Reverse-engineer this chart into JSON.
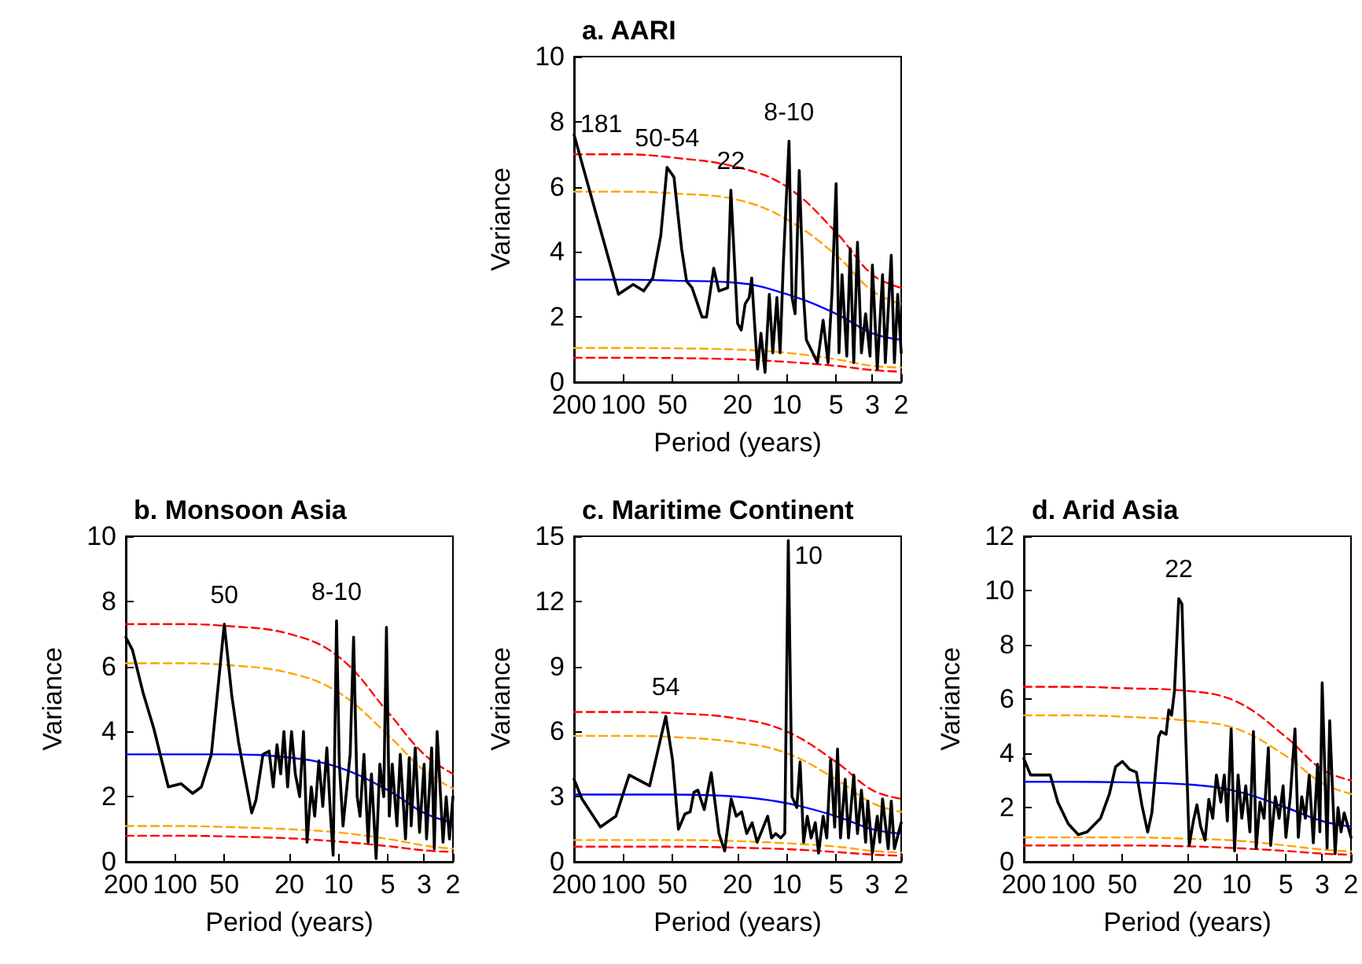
{
  "chart_data": [
    {
      "type": "line",
      "title": "a. AARI",
      "xlabel": "Period (years)",
      "ylabel": "Variance",
      "log": "x",
      "marker": "none",
      "xlim": [
        200,
        2
      ],
      "xticks": [
        200,
        100,
        50,
        20,
        10,
        5,
        3,
        2
      ],
      "ylim": [
        0,
        10
      ],
      "yticks": [
        0,
        2,
        4,
        6,
        8,
        10
      ],
      "annotations": [
        {
          "text": "181",
          "x": 200,
          "y": 7.6
        },
        {
          "text": "50-54",
          "x": 54,
          "y": 6.6
        },
        {
          "text": "22",
          "x": 22,
          "y": 5.9
        },
        {
          "text": "8-10",
          "x": 9.7,
          "y": 7.4
        }
      ],
      "series": [
        {
          "color": "#000000",
          "line_style": "solid",
          "x": [
            200,
            107,
            87,
            75,
            66,
            59,
            54,
            49,
            44,
            41,
            38,
            33,
            31,
            28,
            26,
            23,
            22,
            20,
            19,
            18,
            17,
            16.4,
            15.8,
            15.1,
            14.4,
            13.6,
            12.8,
            12.2,
            11.5,
            11,
            10.5,
            9.7,
            9.3,
            8.9,
            8.4,
            7.9,
            7.6,
            6.5,
            6,
            5.6,
            5.3,
            5,
            4.8,
            4.6,
            4.3,
            4.1,
            3.9,
            3.7,
            3.5,
            3.3,
            3.1,
            3,
            2.8,
            2.6,
            2.5,
            2.3,
            2.2,
            2.1,
            2
          ],
          "values": [
            7.6,
            2.7,
            3.0,
            2.8,
            3.2,
            4.5,
            6.6,
            6.3,
            4.1,
            3.1,
            2.9,
            2.0,
            2.0,
            3.5,
            2.8,
            2.9,
            5.9,
            1.8,
            1.6,
            2.4,
            2.6,
            3.2,
            1.9,
            0.4,
            1.5,
            0.3,
            2.7,
            0.9,
            2.6,
            0.9,
            3.7,
            7.4,
            2.6,
            2.1,
            6.5,
            2.6,
            1.3,
            0.6,
            1.9,
            0.6,
            2.7,
            6.1,
            0.9,
            3.3,
            0.8,
            4.1,
            0.6,
            4.3,
            0.9,
            2.1,
            0.8,
            3.6,
            0.4,
            3.3,
            0.6,
            3.9,
            0.6,
            2.7,
            0.9
          ]
        },
        {
          "color": "#ff0000",
          "line_style": "dashed",
          "x": [
            200,
            100,
            50,
            20,
            10,
            5,
            3,
            2
          ],
          "values": [
            7.0,
            7.0,
            6.9,
            6.6,
            6.0,
            4.6,
            3.3,
            2.9
          ]
        },
        {
          "color": "#ffa500",
          "line_style": "dashed",
          "x": [
            200,
            100,
            50,
            20,
            10,
            5,
            3,
            2
          ],
          "values": [
            5.85,
            5.85,
            5.8,
            5.6,
            5.0,
            3.9,
            2.8,
            2.4
          ]
        },
        {
          "color": "#0000ff",
          "line_style": "solid",
          "x": [
            200,
            100,
            50,
            20,
            10,
            5,
            3,
            2
          ],
          "values": [
            3.15,
            3.15,
            3.12,
            3.05,
            2.7,
            2.1,
            1.5,
            1.3
          ]
        },
        {
          "color": "#ffa500",
          "line_style": "dashed",
          "x": [
            200,
            100,
            50,
            20,
            10,
            5,
            3,
            2
          ],
          "values": [
            1.05,
            1.05,
            1.04,
            1.0,
            0.9,
            0.7,
            0.5,
            0.45
          ]
        },
        {
          "color": "#ff0000",
          "line_style": "dashed",
          "x": [
            200,
            100,
            50,
            20,
            10,
            5,
            3,
            2
          ],
          "values": [
            0.75,
            0.75,
            0.74,
            0.7,
            0.62,
            0.5,
            0.37,
            0.32
          ]
        }
      ]
    },
    {
      "type": "line",
      "title": "b. Monsoon Asia",
      "xlabel": "Period (years)",
      "ylabel": "Variance",
      "log": "x",
      "marker": "none",
      "xlim": [
        200,
        2
      ],
      "xticks": [
        200,
        100,
        50,
        20,
        10,
        5,
        3,
        2
      ],
      "ylim": [
        0,
        10
      ],
      "yticks": [
        0,
        2,
        4,
        6,
        8,
        10
      ],
      "annotations": [
        {
          "text": "50",
          "x": 50,
          "y": 7.3
        },
        {
          "text": "8-10",
          "x": 10.3,
          "y": 7.4
        }
      ],
      "series": [
        {
          "color": "#000000",
          "line_style": "solid",
          "x": [
            200,
            182,
            157,
            135,
            110,
            92,
            78,
            69,
            60,
            50,
            45,
            41,
            38,
            34,
            32,
            29,
            26.6,
            25.1,
            23.8,
            22.6,
            21.6,
            20.5,
            19.4,
            18.4,
            17.3,
            16.4,
            15.6,
            14.7,
            14,
            13.2,
            12.5,
            11.8,
            11.2,
            10.8,
            10.3,
            9.9,
            9.4,
            8.5,
            8.1,
            7.7,
            7.4,
            7,
            6.6,
            6.3,
            5.9,
            5.6,
            5.3,
            5.1,
            4.9,
            4.7,
            4.4,
            4.2,
            3.9,
            3.7,
            3.6,
            3.4,
            3.2,
            3,
            2.9,
            2.7,
            2.6,
            2.5,
            2.3,
            2.2,
            2.1,
            2
          ],
          "values": [
            6.9,
            6.5,
            5.2,
            4.1,
            2.3,
            2.4,
            2.1,
            2.3,
            3.3,
            7.3,
            5.1,
            3.7,
            2.8,
            1.5,
            1.9,
            3.3,
            3.4,
            2.3,
            3.6,
            2.7,
            4.0,
            2.3,
            4.0,
            2.7,
            2.0,
            4.0,
            0.6,
            2.3,
            1.4,
            3.1,
            1.7,
            3.5,
            1.4,
            0.2,
            7.4,
            3.0,
            1.1,
            3.3,
            6.9,
            2.0,
            1.4,
            3.3,
            0.6,
            2.7,
            0.1,
            3.0,
            2.0,
            7.2,
            1.4,
            3.0,
            1.1,
            3.3,
            0.7,
            3.2,
            1.1,
            3.5,
            0.9,
            3.0,
            0.7,
            3.5,
            0.4,
            4.0,
            0.6,
            2.0,
            0.7,
            2.0
          ]
        },
        {
          "color": "#ff0000",
          "line_style": "dashed",
          "x": [
            200,
            100,
            50,
            20,
            10,
            5,
            3,
            2
          ],
          "values": [
            7.3,
            7.3,
            7.25,
            7.0,
            6.3,
            4.6,
            3.3,
            2.7
          ]
        },
        {
          "color": "#ffa500",
          "line_style": "dashed",
          "x": [
            200,
            100,
            50,
            20,
            10,
            5,
            3,
            2
          ],
          "values": [
            6.1,
            6.1,
            6.05,
            5.8,
            5.2,
            3.9,
            2.8,
            2.25
          ]
        },
        {
          "color": "#0000ff",
          "line_style": "solid",
          "x": [
            200,
            100,
            50,
            20,
            10,
            5,
            3,
            2
          ],
          "values": [
            3.3,
            3.3,
            3.3,
            3.2,
            2.9,
            2.2,
            1.5,
            1.2
          ]
        },
        {
          "color": "#ffa500",
          "line_style": "dashed",
          "x": [
            200,
            100,
            50,
            20,
            10,
            5,
            3,
            2
          ],
          "values": [
            1.1,
            1.1,
            1.07,
            1.0,
            0.9,
            0.7,
            0.5,
            0.4
          ]
        },
        {
          "color": "#ff0000",
          "line_style": "dashed",
          "x": [
            200,
            100,
            50,
            20,
            10,
            5,
            3,
            2
          ],
          "values": [
            0.8,
            0.8,
            0.78,
            0.72,
            0.62,
            0.48,
            0.35,
            0.3
          ]
        }
      ]
    },
    {
      "type": "line",
      "title": "c. Maritime Continent",
      "xlabel": "Period (years)",
      "ylabel": "Variance",
      "log": "x",
      "marker": "none",
      "xlim": [
        200,
        2
      ],
      "xticks": [
        200,
        100,
        50,
        20,
        10,
        5,
        3,
        2
      ],
      "ylim": [
        0,
        15
      ],
      "yticks": [
        0,
        3,
        6,
        9,
        12,
        15
      ],
      "annotations": [
        {
          "text": "54",
          "x": 55,
          "y": 6.7
        },
        {
          "text": "10",
          "x": 9.8,
          "y": 14.8
        }
      ],
      "series": [
        {
          "color": "#000000",
          "line_style": "solid",
          "x": [
            200,
            179,
            138,
            111,
            92,
            69,
            55,
            50,
            46,
            42,
            39,
            37,
            35,
            32,
            29,
            26,
            24,
            21.9,
            20.4,
            18.9,
            17.6,
            16.3,
            15.2,
            14.1,
            13.1,
            12.4,
            11.7,
            10.9,
            10.3,
            9.8,
            9.3,
            8.7,
            8.3,
            7.9,
            7.5,
            7.1,
            6.7,
            6.4,
            6,
            5.7,
            5.4,
            5.1,
            4.9,
            4.7,
            4.4,
            4.2,
            3.9,
            3.7,
            3.5,
            3.3,
            3.2,
            3,
            2.8,
            2.7,
            2.6,
            2.4,
            2.3,
            2.2,
            2
          ],
          "values": [
            3.8,
            2.9,
            1.6,
            2.1,
            4.0,
            3.5,
            6.7,
            4.7,
            1.5,
            2.2,
            2.3,
            3.2,
            3.3,
            2.4,
            4.1,
            1.3,
            0.5,
            2.9,
            2.1,
            2.3,
            1.3,
            1.8,
            0.9,
            1.5,
            2.1,
            1.1,
            1.3,
            1.1,
            1.3,
            14.8,
            3.0,
            2.5,
            4.6,
            0.9,
            2.1,
            1.1,
            1.8,
            0.4,
            2.1,
            1.1,
            4.7,
            1.6,
            5.2,
            1.1,
            3.8,
            1.1,
            4.0,
            1.3,
            3.3,
            0.9,
            2.8,
            0.4,
            2.1,
            0.9,
            2.9,
            0.6,
            2.8,
            0.6,
            1.8
          ]
        },
        {
          "color": "#ff0000",
          "line_style": "dashed",
          "x": [
            200,
            100,
            50,
            20,
            10,
            5,
            3,
            2
          ],
          "values": [
            6.9,
            6.9,
            6.85,
            6.6,
            6.0,
            4.6,
            3.3,
            2.9
          ]
        },
        {
          "color": "#ffa500",
          "line_style": "dashed",
          "x": [
            200,
            100,
            50,
            20,
            10,
            5,
            3,
            2
          ],
          "values": [
            5.8,
            5.8,
            5.75,
            5.5,
            5.0,
            3.8,
            2.7,
            2.3
          ]
        },
        {
          "color": "#0000ff",
          "line_style": "solid",
          "x": [
            200,
            100,
            50,
            20,
            10,
            5,
            3,
            2
          ],
          "values": [
            3.1,
            3.1,
            3.1,
            3.0,
            2.7,
            2.1,
            1.5,
            1.3
          ]
        },
        {
          "color": "#ffa500",
          "line_style": "dashed",
          "x": [
            200,
            100,
            50,
            20,
            10,
            5,
            3,
            2
          ],
          "values": [
            1.0,
            1.0,
            1.0,
            0.95,
            0.85,
            0.7,
            0.5,
            0.42
          ]
        },
        {
          "color": "#ff0000",
          "line_style": "dashed",
          "x": [
            200,
            100,
            50,
            20,
            10,
            5,
            3,
            2
          ],
          "values": [
            0.7,
            0.7,
            0.7,
            0.65,
            0.58,
            0.45,
            0.33,
            0.28
          ]
        }
      ]
    },
    {
      "type": "line",
      "title": "d. Arid Asia",
      "xlabel": "Period (years)",
      "ylabel": "Variance",
      "log": "x",
      "marker": "none",
      "xlim": [
        200,
        2
      ],
      "xticks": [
        200,
        100,
        50,
        20,
        10,
        5,
        3,
        2
      ],
      "ylim": [
        0,
        12
      ],
      "yticks": [
        0,
        2,
        4,
        6,
        8,
        10,
        12
      ],
      "annotations": [
        {
          "text": "22",
          "x": 22.6,
          "y": 9.7
        }
      ],
      "series": [
        {
          "color": "#000000",
          "line_style": "solid",
          "x": [
            200,
            182,
            138,
            124,
            107,
            93,
            82,
            68,
            60,
            55,
            50,
            45,
            41,
            38,
            35,
            33,
            30,
            29,
            27,
            26,
            25,
            24,
            22.6,
            21.6,
            20.5,
            19.5,
            18.4,
            17.5,
            16.6,
            15.6,
            14.8,
            14,
            13.3,
            12.5,
            11.9,
            11.4,
            10.8,
            10.3,
            9.8,
            9.3,
            8.8,
            8.3,
            7.9,
            7.6,
            7.2,
            6.8,
            6.4,
            6.2,
            5.8,
            5.5,
            5.2,
            5,
            4.7,
            4.4,
            4.2,
            4,
            3.8,
            3.6,
            3.4,
            3.2,
            3.1,
            3,
            2.8,
            2.7,
            2.5,
            2.4,
            2.3,
            2.2,
            2
          ],
          "values": [
            3.8,
            3.2,
            3.2,
            2.2,
            1.4,
            1.0,
            1.1,
            1.6,
            2.5,
            3.5,
            3.7,
            3.4,
            3.3,
            2.1,
            1.1,
            1.8,
            4.6,
            4.8,
            4.7,
            5.6,
            5.4,
            6.3,
            9.7,
            9.5,
            4.7,
            0.6,
            1.5,
            2.1,
            1.3,
            0.8,
            2.3,
            1.6,
            3.2,
            2.2,
            3.2,
            1.5,
            4.9,
            0.4,
            3.2,
            1.6,
            2.8,
            1.1,
            4.8,
            0.5,
            2.2,
            1.6,
            4.2,
            0.6,
            2.4,
            1.6,
            2.8,
            0.9,
            2.4,
            4.9,
            0.9,
            2.4,
            1.6,
            3.2,
            0.7,
            3.6,
            1.1,
            6.6,
            0.5,
            5.2,
            0.3,
            2.0,
            1.1,
            1.8,
            0.9
          ]
        },
        {
          "color": "#ff0000",
          "line_style": "dashed",
          "x": [
            200,
            100,
            50,
            20,
            10,
            5,
            3,
            2
          ],
          "values": [
            6.45,
            6.45,
            6.4,
            6.3,
            5.9,
            4.6,
            3.4,
            3.0
          ]
        },
        {
          "color": "#ffa500",
          "line_style": "dashed",
          "x": [
            200,
            100,
            50,
            20,
            10,
            5,
            3,
            2
          ],
          "values": [
            5.4,
            5.4,
            5.35,
            5.2,
            4.9,
            3.9,
            2.9,
            2.5
          ]
        },
        {
          "color": "#0000ff",
          "line_style": "solid",
          "x": [
            200,
            100,
            50,
            20,
            10,
            5,
            3,
            2
          ],
          "values": [
            2.95,
            2.95,
            2.93,
            2.85,
            2.6,
            2.0,
            1.5,
            1.3
          ]
        },
        {
          "color": "#ffa500",
          "line_style": "dashed",
          "x": [
            200,
            100,
            50,
            20,
            10,
            5,
            3,
            2
          ],
          "values": [
            0.9,
            0.9,
            0.9,
            0.85,
            0.78,
            0.6,
            0.45,
            0.38
          ]
        },
        {
          "color": "#ff0000",
          "line_style": "dashed",
          "x": [
            200,
            100,
            50,
            20,
            10,
            5,
            3,
            2
          ],
          "values": [
            0.6,
            0.6,
            0.6,
            0.57,
            0.5,
            0.4,
            0.3,
            0.26
          ]
        }
      ]
    }
  ]
}
